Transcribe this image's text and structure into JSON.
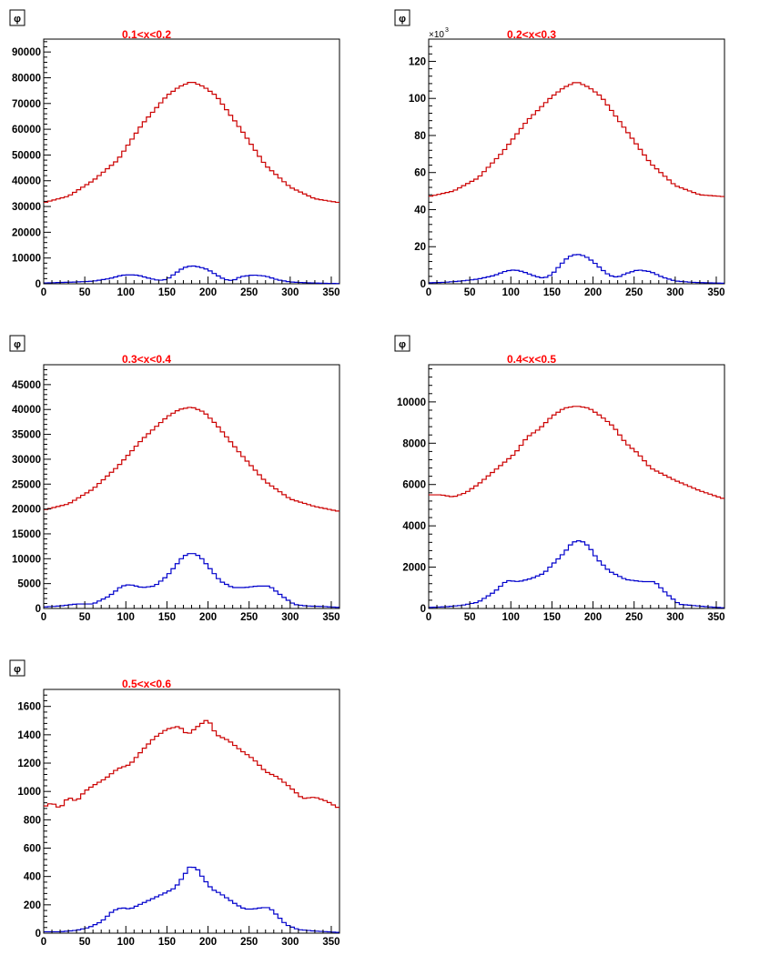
{
  "chart_data": [
    {
      "type": "line",
      "title": "0.1<x<0.2",
      "xlabel": "φ",
      "ylabel": "",
      "xlim": [
        0,
        360
      ],
      "ylim": [
        0,
        95000
      ],
      "xticks": [
        0,
        50,
        100,
        150,
        200,
        250,
        300,
        350
      ],
      "yticks": [
        0,
        10000,
        20000,
        30000,
        40000,
        50000,
        60000,
        70000,
        80000,
        90000
      ],
      "y_multiplier": "",
      "bins": 72,
      "series": [
        {
          "color": "#cc0000",
          "x_anchor": [
            0,
            30,
            60,
            90,
            120,
            150,
            165,
            180,
            195,
            210,
            240,
            270,
            300,
            330,
            360
          ],
          "y_anchor": [
            31500,
            34000,
            40000,
            48000,
            62000,
            73000,
            76500,
            78500,
            76500,
            73000,
            60000,
            46000,
            37500,
            33000,
            31500
          ]
        },
        {
          "color": "#0000cc",
          "x_anchor": [
            0,
            20,
            40,
            60,
            80,
            95,
            105,
            115,
            130,
            140,
            150,
            160,
            170,
            180,
            190,
            200,
            210,
            220,
            230,
            240,
            255,
            270,
            285,
            300,
            320,
            340,
            360
          ],
          "y_anchor": [
            300,
            500,
            700,
            1000,
            2000,
            3300,
            3500,
            3300,
            2000,
            1300,
            1700,
            4000,
            6200,
            7000,
            6500,
            5500,
            3500,
            1700,
            1200,
            2800,
            3400,
            3000,
            1500,
            700,
            400,
            200,
            100
          ]
        }
      ]
    },
    {
      "type": "line",
      "title": "0.2<x<0.3",
      "xlabel": "φ",
      "ylabel": "",
      "xlim": [
        0,
        360
      ],
      "ylim": [
        0,
        132
      ],
      "xticks": [
        0,
        50,
        100,
        150,
        200,
        250,
        300,
        350
      ],
      "yticks": [
        0,
        20,
        40,
        60,
        80,
        100,
        120
      ],
      "y_multiplier": "×10",
      "y_multiplier_exp": "3",
      "bins": 72,
      "series": [
        {
          "color": "#cc0000",
          "x_anchor": [
            0,
            30,
            60,
            90,
            120,
            150,
            165,
            180,
            195,
            210,
            240,
            270,
            300,
            330,
            360
          ],
          "y_anchor": [
            47,
            50,
            57,
            71,
            88,
            101,
            106,
            109,
            106,
            101,
            83,
            65,
            53,
            48,
            47
          ]
        },
        {
          "color": "#0000cc",
          "x_anchor": [
            0,
            20,
            40,
            60,
            80,
            95,
            105,
            115,
            130,
            140,
            150,
            160,
            170,
            180,
            190,
            200,
            210,
            220,
            230,
            240,
            255,
            270,
            285,
            300,
            320,
            340,
            360
          ],
          "y_anchor": [
            0.5,
            0.8,
            1.5,
            2.5,
            4.5,
            7,
            7.5,
            6.5,
            4,
            3,
            5,
            10,
            14.5,
            16,
            15,
            12,
            8,
            4.5,
            3.5,
            5.5,
            7.5,
            6.5,
            3.5,
            1.5,
            0.8,
            0.5,
            0.3
          ]
        }
      ]
    },
    {
      "type": "line",
      "title": "0.3<x<0.4",
      "xlabel": "φ",
      "ylabel": "",
      "xlim": [
        0,
        360
      ],
      "ylim": [
        0,
        49000
      ],
      "xticks": [
        0,
        50,
        100,
        150,
        200,
        250,
        300,
        350
      ],
      "yticks": [
        0,
        5000,
        10000,
        15000,
        20000,
        25000,
        30000,
        35000,
        40000,
        45000
      ],
      "y_multiplier": "",
      "bins": 72,
      "series": [
        {
          "color": "#cc0000",
          "x_anchor": [
            0,
            30,
            60,
            90,
            120,
            150,
            165,
            180,
            195,
            210,
            240,
            270,
            300,
            330,
            360
          ],
          "y_anchor": [
            19800,
            21000,
            24000,
            28500,
            34000,
            38500,
            40000,
            40500,
            39500,
            37000,
            31000,
            25500,
            22000,
            20500,
            19500
          ]
        },
        {
          "color": "#0000cc",
          "x_anchor": [
            0,
            20,
            40,
            60,
            80,
            95,
            105,
            120,
            135,
            150,
            160,
            170,
            180,
            190,
            200,
            215,
            230,
            245,
            260,
            275,
            290,
            305,
            320,
            340,
            360
          ],
          "y_anchor": [
            300,
            500,
            900,
            900,
            2500,
            4500,
            4800,
            4200,
            4500,
            6500,
            8500,
            10500,
            11200,
            10500,
            8500,
            5500,
            4200,
            4200,
            4500,
            4500,
            2500,
            800,
            500,
            400,
            200
          ]
        }
      ]
    },
    {
      "type": "line",
      "title": "0.4<x<0.5",
      "xlabel": "φ",
      "ylabel": "",
      "xlim": [
        0,
        360
      ],
      "ylim": [
        0,
        11800
      ],
      "xticks": [
        0,
        50,
        100,
        150,
        200,
        250,
        300,
        350
      ],
      "yticks": [
        0,
        2000,
        4000,
        6000,
        8000,
        10000
      ],
      "y_multiplier": "",
      "bins": 72,
      "series": [
        {
          "color": "#cc0000",
          "x_anchor": [
            0,
            15,
            30,
            45,
            60,
            90,
            105,
            120,
            135,
            150,
            165,
            180,
            195,
            210,
            225,
            240,
            255,
            270,
            300,
            330,
            345,
            360
          ],
          "y_anchor": [
            5500,
            5500,
            5400,
            5600,
            6000,
            7000,
            7500,
            8300,
            8700,
            9300,
            9700,
            9800,
            9700,
            9300,
            8800,
            8000,
            7500,
            6800,
            6200,
            5700,
            5500,
            5300
          ]
        },
        {
          "color": "#0000cc",
          "x_anchor": [
            0,
            20,
            40,
            60,
            80,
            95,
            110,
            125,
            140,
            155,
            165,
            175,
            185,
            195,
            205,
            220,
            240,
            260,
            275,
            290,
            305,
            320,
            340,
            360
          ],
          "y_anchor": [
            50,
            80,
            150,
            300,
            800,
            1350,
            1300,
            1450,
            1700,
            2300,
            2700,
            3200,
            3300,
            3000,
            2400,
            1800,
            1400,
            1300,
            1300,
            700,
            200,
            150,
            80,
            30
          ]
        }
      ]
    },
    {
      "type": "line",
      "title": "0.5<x<0.6",
      "xlabel": "φ",
      "ylabel": "",
      "xlim": [
        0,
        360
      ],
      "ylim": [
        0,
        1720
      ],
      "xticks": [
        0,
        50,
        100,
        150,
        200,
        250,
        300,
        350
      ],
      "yticks": [
        0,
        200,
        400,
        600,
        800,
        1000,
        1200,
        1400,
        1600
      ],
      "y_multiplier": "",
      "bins": 72,
      "series": [
        {
          "color": "#cc0000",
          "x_anchor": [
            0,
            10,
            20,
            30,
            40,
            50,
            60,
            75,
            90,
            105,
            120,
            135,
            150,
            165,
            175,
            190,
            200,
            210,
            225,
            240,
            255,
            270,
            285,
            300,
            315,
            330,
            345,
            360
          ],
          "y_anchor": [
            890,
            920,
            880,
            960,
            930,
            1000,
            1040,
            1090,
            1160,
            1190,
            1290,
            1380,
            1440,
            1460,
            1400,
            1470,
            1510,
            1400,
            1360,
            1290,
            1230,
            1140,
            1100,
            1030,
            950,
            960,
            930,
            880
          ]
        },
        {
          "color": "#0000cc",
          "x_anchor": [
            0,
            20,
            40,
            55,
            70,
            85,
            95,
            105,
            120,
            135,
            150,
            160,
            170,
            178,
            186,
            195,
            205,
            215,
            225,
            235,
            245,
            255,
            265,
            275,
            285,
            295,
            310,
            330,
            360
          ],
          "y_anchor": [
            10,
            10,
            20,
            40,
            80,
            160,
            180,
            170,
            210,
            250,
            290,
            320,
            400,
            470,
            460,
            380,
            310,
            280,
            240,
            200,
            170,
            170,
            180,
            180,
            120,
            60,
            25,
            15,
            5
          ]
        }
      ]
    }
  ]
}
